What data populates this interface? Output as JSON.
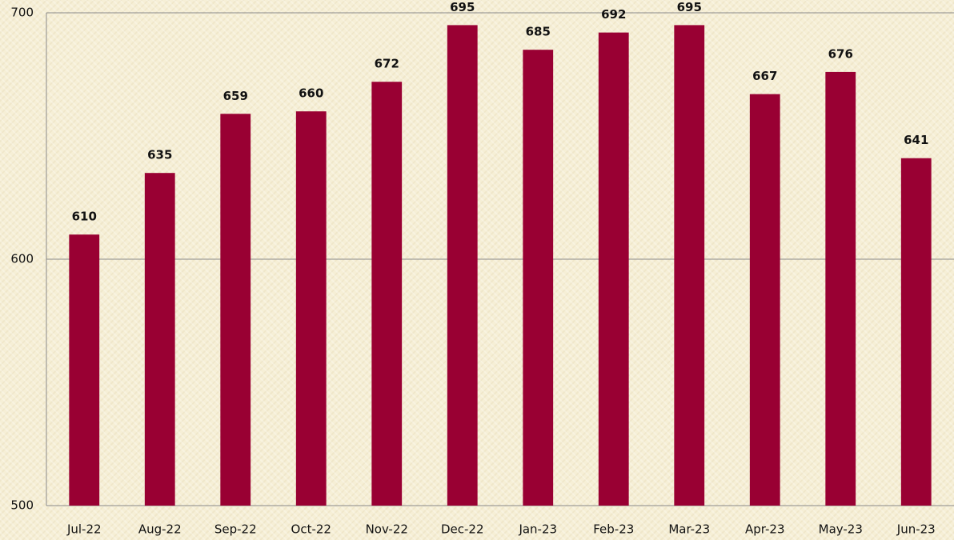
{
  "chart_data": {
    "type": "bar",
    "categories": [
      "Jul-22",
      "Aug-22",
      "Sep-22",
      "Oct-22",
      "Nov-22",
      "Dec-22",
      "Jan-23",
      "Feb-23",
      "Mar-23",
      "Apr-23",
      "May-23",
      "Jun-23"
    ],
    "values": [
      610,
      635,
      659,
      660,
      672,
      695,
      685,
      692,
      695,
      667,
      676,
      641
    ],
    "color": "#990033",
    "ylim": [
      500,
      700
    ],
    "yticks": [
      500,
      600,
      700
    ],
    "grid": true
  }
}
